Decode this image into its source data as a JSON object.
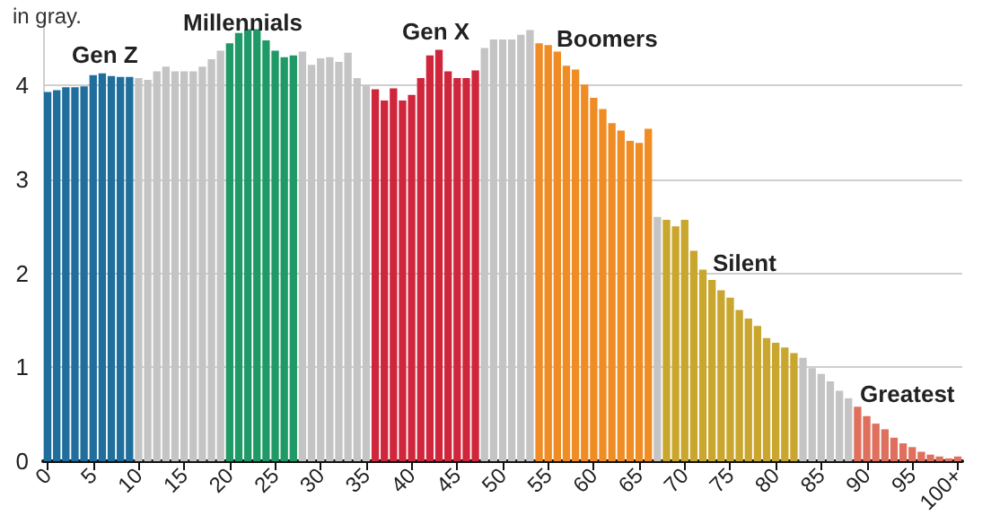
{
  "chart_data": {
    "type": "bar",
    "subtitle": "in gray.",
    "categories": [
      "0",
      null,
      null,
      null,
      null,
      "5",
      null,
      null,
      null,
      null,
      "10",
      null,
      null,
      null,
      null,
      "15",
      null,
      null,
      null,
      null,
      "20",
      null,
      null,
      null,
      null,
      "25",
      null,
      null,
      null,
      null,
      "30",
      null,
      null,
      null,
      null,
      "35",
      null,
      null,
      null,
      null,
      "40",
      null,
      null,
      null,
      null,
      "45",
      null,
      null,
      null,
      null,
      "50",
      null,
      null,
      null,
      null,
      "55",
      null,
      null,
      null,
      null,
      "60",
      null,
      null,
      null,
      null,
      "65",
      null,
      null,
      null,
      null,
      "70",
      null,
      null,
      null,
      null,
      "75",
      null,
      null,
      null,
      null,
      "80",
      null,
      null,
      null,
      null,
      "85",
      null,
      null,
      null,
      null,
      "90",
      null,
      null,
      null,
      null,
      "95",
      null,
      null,
      null,
      null,
      "100+"
    ],
    "values": [
      3.93,
      3.95,
      3.98,
      3.98,
      3.99,
      4.11,
      4.13,
      4.1,
      4.09,
      4.09,
      4.08,
      4.06,
      4.15,
      4.2,
      4.15,
      4.15,
      4.15,
      4.2,
      4.28,
      4.37,
      4.45,
      4.56,
      4.6,
      4.6,
      4.48,
      4.37,
      4.3,
      4.32,
      4.36,
      4.22,
      4.29,
      4.3,
      4.25,
      4.35,
      4.08,
      4.0,
      3.96,
      3.84,
      3.97,
      3.84,
      3.9,
      4.08,
      4.32,
      4.38,
      4.15,
      4.08,
      4.08,
      4.16,
      4.4,
      4.49,
      4.49,
      4.49,
      4.54,
      4.59,
      4.45,
      4.43,
      4.36,
      4.21,
      4.17,
      4.01,
      3.87,
      3.75,
      3.6,
      3.52,
      3.41,
      3.39,
      3.54,
      2.6,
      2.57,
      2.5,
      2.57,
      2.24,
      2.04,
      1.93,
      1.82,
      1.74,
      1.61,
      1.52,
      1.44,
      1.31,
      1.26,
      1.21,
      1.15,
      1.1,
      0.99,
      0.93,
      0.85,
      0.75,
      0.67,
      0.58,
      0.48,
      0.4,
      0.34,
      0.25,
      0.19,
      0.15,
      0.1,
      0.07,
      0.05,
      0.03,
      0.05
    ],
    "colors": [
      "#1f6e9c",
      "#1f6e9c",
      "#1f6e9c",
      "#1f6e9c",
      "#1f6e9c",
      "#1f6e9c",
      "#1f6e9c",
      "#1f6e9c",
      "#1f6e9c",
      "#1f6e9c",
      "#c4c4c4",
      "#c4c4c4",
      "#c4c4c4",
      "#c4c4c4",
      "#c4c4c4",
      "#c4c4c4",
      "#c4c4c4",
      "#c4c4c4",
      "#c4c4c4",
      "#c4c4c4",
      "#1f9a66",
      "#1f9a66",
      "#1f9a66",
      "#1f9a66",
      "#1f9a66",
      "#1f9a66",
      "#1f9a66",
      "#1f9a66",
      "#c4c4c4",
      "#c4c4c4",
      "#c4c4c4",
      "#c4c4c4",
      "#c4c4c4",
      "#c4c4c4",
      "#c4c4c4",
      "#c4c4c4",
      "#d0263c",
      "#d0263c",
      "#d0263c",
      "#d0263c",
      "#d0263c",
      "#d0263c",
      "#d0263c",
      "#d0263c",
      "#d0263c",
      "#d0263c",
      "#d0263c",
      "#d0263c",
      "#c4c4c4",
      "#c4c4c4",
      "#c4c4c4",
      "#c4c4c4",
      "#c4c4c4",
      "#c4c4c4",
      "#f08c24",
      "#f08c24",
      "#f08c24",
      "#f08c24",
      "#f08c24",
      "#f08c24",
      "#f08c24",
      "#f08c24",
      "#f08c24",
      "#f08c24",
      "#f08c24",
      "#f08c24",
      "#f08c24",
      "#c4c4c4",
      "#c9a62e",
      "#c9a62e",
      "#c9a62e",
      "#c9a62e",
      "#c9a62e",
      "#c9a62e",
      "#c9a62e",
      "#c9a62e",
      "#c9a62e",
      "#c9a62e",
      "#c9a62e",
      "#c9a62e",
      "#c9a62e",
      "#c9a62e",
      "#c9a62e",
      "#c4c4c4",
      "#c4c4c4",
      "#c4c4c4",
      "#c4c4c4",
      "#c4c4c4",
      "#c4c4c4",
      "#e0705e",
      "#e0705e",
      "#e0705e",
      "#e0705e",
      "#e0705e",
      "#e0705e",
      "#e0705e",
      "#e0705e",
      "#e0705e",
      "#e0705e",
      "#e0705e",
      "#e0705e"
    ],
    "ylim": [
      0,
      4.7
    ],
    "yticks": [
      0,
      1,
      2,
      3,
      4
    ],
    "grid": "y",
    "annotations": [
      "Gen Z",
      "Millennials",
      "Gen X",
      "Boomers",
      "Silent",
      "Greatest"
    ]
  }
}
